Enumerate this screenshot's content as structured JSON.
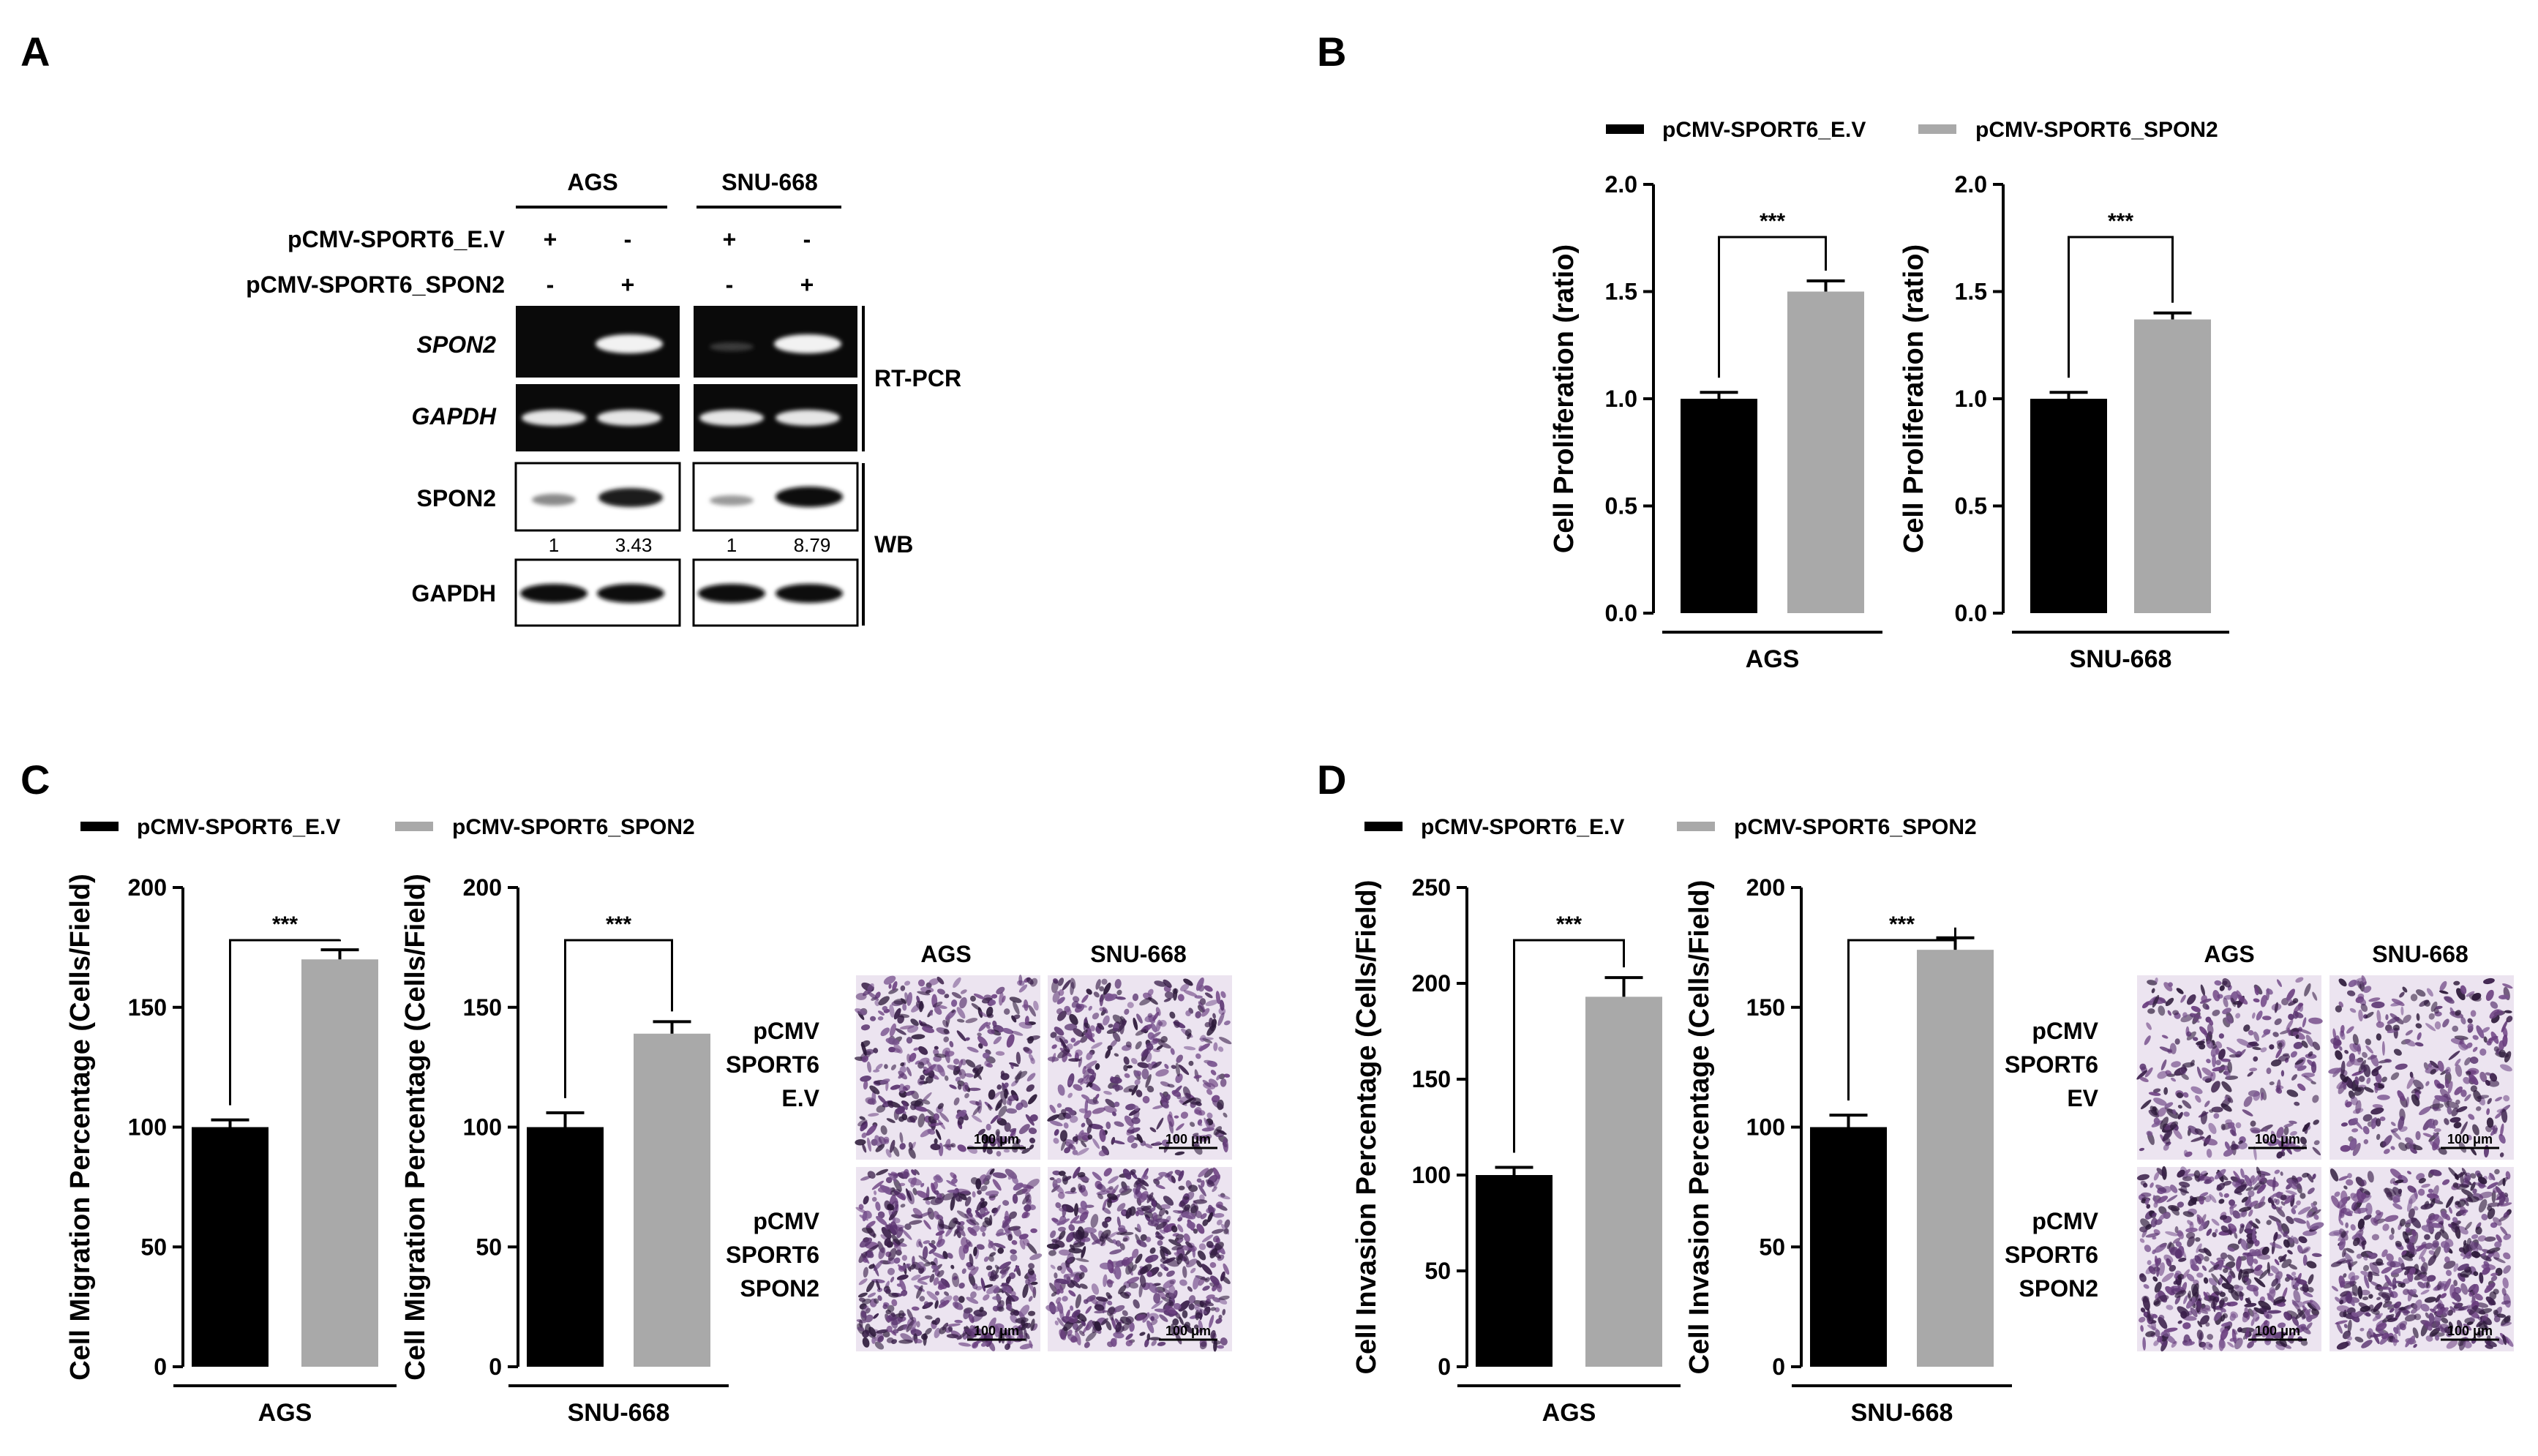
{
  "panels": {
    "A": {
      "label": "A",
      "cell_lines": [
        "AGS",
        "SNU-668"
      ],
      "row_labels": [
        "pCMV-SPORT6_E.V",
        "pCMV-SPORT6_SPON2"
      ],
      "signs": [
        [
          "+",
          "-",
          "+",
          "-"
        ],
        [
          "-",
          "+",
          "-",
          "+"
        ]
      ],
      "gel_labels": [
        "SPON2",
        "GAPDH",
        "SPON2",
        "GAPDH"
      ],
      "bracket_rtpcr": "RT-PCR",
      "bracket_wb": "WB",
      "quant": [
        "1",
        "3.43",
        "1",
        "8.79"
      ]
    },
    "B": {
      "label": "B"
    },
    "C": {
      "label": "C",
      "micro_cols": [
        "AGS",
        "SNU-668"
      ],
      "micro_rows": [
        "pCMV\nSPORT6\nE.V",
        "pCMV\nSPORT6\nSPON2"
      ],
      "scale_bar": "100 μm"
    },
    "D": {
      "label": "D",
      "micro_cols": [
        "AGS",
        "SNU-668"
      ],
      "micro_rows": [
        "pCMV\nSPORT6\nEV",
        "pCMV\nSPORT6\nSPON2"
      ],
      "scale_bar": "100 μm"
    }
  },
  "legend": {
    "ev": "pCMV-SPORT6_E.V",
    "spon2": "pCMV-SPORT6_SPON2",
    "ev_color": "#000000",
    "spon2_color": "#a9a9a9"
  },
  "chart_data": [
    {
      "panel": "B",
      "type": "bar",
      "xlabel": "AGS",
      "ylabel": "Cell Proliferation (ratio)",
      "ylim": [
        0,
        2.0
      ],
      "ticks": [
        "0.0",
        "0.5",
        "1.0",
        "1.5",
        "2.0"
      ],
      "series": [
        {
          "name": "pCMV-SPORT6_E.V",
          "value": 1.0,
          "error": 0.03
        },
        {
          "name": "pCMV-SPORT6_SPON2",
          "value": 1.5,
          "error": 0.05
        }
      ],
      "significance": "***"
    },
    {
      "panel": "B",
      "type": "bar",
      "xlabel": "SNU-668",
      "ylabel": "Cell Proliferation (ratio)",
      "ylim": [
        0,
        2.0
      ],
      "ticks": [
        "0.0",
        "0.5",
        "1.0",
        "1.5",
        "2.0"
      ],
      "series": [
        {
          "name": "pCMV-SPORT6_E.V",
          "value": 1.0,
          "error": 0.03
        },
        {
          "name": "pCMV-SPORT6_SPON2",
          "value": 1.37,
          "error": 0.03
        }
      ],
      "significance": "***"
    },
    {
      "panel": "C",
      "type": "bar",
      "xlabel": "AGS",
      "ylabel": "Cell Migration Percentage (Cells/Field)",
      "ylim": [
        0,
        200
      ],
      "ticks": [
        "0",
        "50",
        "100",
        "150",
        "200"
      ],
      "series": [
        {
          "name": "pCMV-SPORT6_E.V",
          "value": 100,
          "error": 3
        },
        {
          "name": "pCMV-SPORT6_SPON2",
          "value": 170,
          "error": 4
        }
      ],
      "significance": "***"
    },
    {
      "panel": "C",
      "type": "bar",
      "xlabel": "SNU-668",
      "ylabel": "Cell Migration Percentage (Cells/Field)",
      "ylim": [
        0,
        200
      ],
      "ticks": [
        "0",
        "50",
        "100",
        "150",
        "200"
      ],
      "series": [
        {
          "name": "pCMV-SPORT6_E.V",
          "value": 100,
          "error": 6
        },
        {
          "name": "pCMV-SPORT6_SPON2",
          "value": 139,
          "error": 5
        }
      ],
      "significance": "***"
    },
    {
      "panel": "D",
      "type": "bar",
      "xlabel": "AGS",
      "ylabel": "Cell Invasion Percentage (Cells/Field)",
      "ylim": [
        0,
        250
      ],
      "ticks": [
        "0",
        "50",
        "100",
        "150",
        "200",
        "250"
      ],
      "series": [
        {
          "name": "pCMV-SPORT6_E.V",
          "value": 100,
          "error": 4
        },
        {
          "name": "pCMV-SPORT6_SPON2",
          "value": 193,
          "error": 10
        }
      ],
      "significance": "***"
    },
    {
      "panel": "D",
      "type": "bar",
      "xlabel": "SNU-668",
      "ylabel": "Cell Invasion Percentage (Cells/Field)",
      "ylim": [
        0,
        200
      ],
      "ticks": [
        "0",
        "50",
        "100",
        "150",
        "200"
      ],
      "series": [
        {
          "name": "pCMV-SPORT6_E.V",
          "value": 100,
          "error": 5
        },
        {
          "name": "pCMV-SPORT6_SPON2",
          "value": 174,
          "error": 5
        }
      ],
      "significance": "***"
    }
  ]
}
